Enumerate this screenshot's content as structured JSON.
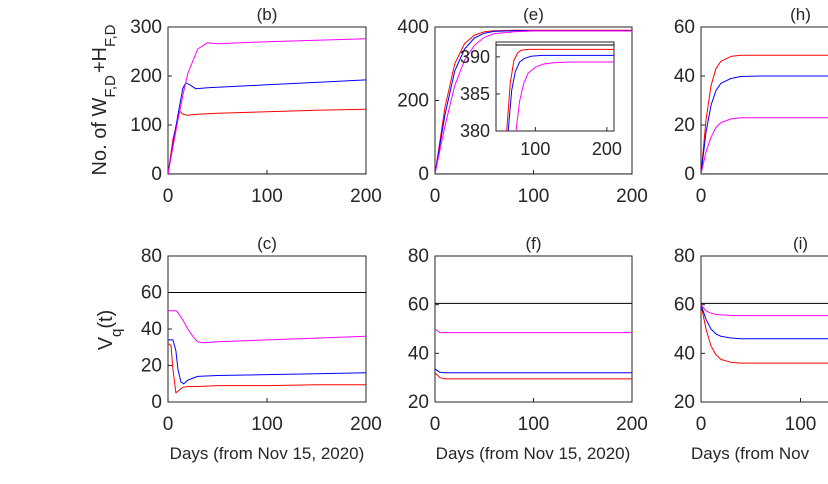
{
  "figure": {
    "ylabel_top": {
      "base": "No. of W",
      "sub1": "F,D",
      "mid": "+H",
      "sub2": "F,D"
    },
    "ylabel_bottom": {
      "base": "V",
      "sub": "q",
      "tail": "(t)"
    },
    "xlabel": "Days (from Nov 15, 2020)",
    "xlabel_cropped": "Days (from Nov"
  },
  "colors": {
    "black": "#000000",
    "blue": "#0000ff",
    "red": "#ff0000",
    "magenta": "#ff00ff",
    "axis": "#262626"
  },
  "chart_data": [
    {
      "panel": "(b)",
      "type": "line",
      "title": "(b)",
      "xlim": [
        0,
        200
      ],
      "ylim": [
        0,
        300
      ],
      "xticks": [
        0,
        100,
        200
      ],
      "yticks": [
        0,
        100,
        200,
        300
      ],
      "series": [
        {
          "color": "black",
          "x": [
            0,
            200
          ],
          "y": [
            0,
            0
          ]
        },
        {
          "color": "red",
          "x": [
            0,
            5,
            10,
            12,
            15,
            20,
            30,
            50,
            100,
            150,
            200
          ],
          "y": [
            0,
            70,
            115,
            128,
            122,
            120,
            122,
            124,
            127,
            130,
            132
          ]
        },
        {
          "color": "blue",
          "x": [
            0,
            5,
            10,
            15,
            18,
            22,
            28,
            40,
            60,
            100,
            150,
            200
          ],
          "y": [
            0,
            60,
            120,
            175,
            186,
            182,
            174,
            176,
            178,
            182,
            187,
            192
          ]
        },
        {
          "color": "magenta",
          "x": [
            0,
            5,
            10,
            15,
            20,
            30,
            40,
            50,
            100,
            150,
            200
          ],
          "y": [
            0,
            55,
            110,
            160,
            205,
            255,
            268,
            266,
            270,
            273,
            276
          ]
        }
      ]
    },
    {
      "panel": "(e)",
      "type": "line",
      "title": "(e)",
      "xlim": [
        0,
        200
      ],
      "ylim": [
        0,
        400
      ],
      "xticks": [
        0,
        100,
        200
      ],
      "yticks": [
        0,
        200,
        400
      ],
      "series": [
        {
          "color": "black",
          "x": [
            0,
            200
          ],
          "y": [
            0,
            0
          ]
        },
        {
          "color": "red",
          "x": [
            0,
            10,
            20,
            30,
            40,
            50,
            60,
            80,
            100,
            150,
            200
          ],
          "y": [
            0,
            180,
            300,
            355,
            378,
            387,
            390,
            391,
            391,
            391,
            391
          ]
        },
        {
          "color": "blue",
          "x": [
            0,
            10,
            20,
            30,
            40,
            50,
            60,
            80,
            100,
            150,
            200
          ],
          "y": [
            0,
            160,
            280,
            340,
            370,
            383,
            388,
            390,
            390,
            390,
            390
          ]
        },
        {
          "color": "magenta",
          "x": [
            0,
            10,
            20,
            30,
            40,
            50,
            60,
            80,
            100,
            150,
            200
          ],
          "y": [
            0,
            130,
            240,
            310,
            350,
            372,
            382,
            387,
            389,
            389,
            389
          ]
        }
      ],
      "inset": {
        "xlim": [
          45,
          210
        ],
        "ylim": [
          380,
          392
        ],
        "xticks": [
          100,
          200
        ],
        "yticks": [
          380,
          385,
          390
        ],
        "series": [
          {
            "color": "black",
            "x": [
              45,
              210
            ],
            "y": [
              391.6,
              391.6
            ]
          },
          {
            "color": "red",
            "x": [
              60,
              65,
              70,
              75,
              80,
              90,
              100,
              120,
              150,
              210
            ],
            "y": [
              380,
              386.5,
              389.5,
              390.5,
              390.9,
              391.0,
              391.0,
              391.0,
              391.0,
              391.0
            ]
          },
          {
            "color": "blue",
            "x": [
              62,
              67,
              72,
              78,
              85,
              95,
              110,
              130,
              160,
              210
            ],
            "y": [
              380,
              385.5,
              388.0,
              389.3,
              389.8,
              390.1,
              390.2,
              390.2,
              390.2,
              390.2
            ]
          },
          {
            "color": "magenta",
            "x": [
              73,
              78,
              84,
              90,
              100,
              110,
              125,
              150,
              180,
              210
            ],
            "y": [
              380,
              384.0,
              386.5,
              387.8,
              388.6,
              389.0,
              389.2,
              389.3,
              389.3,
              389.3
            ]
          }
        ]
      }
    },
    {
      "panel": "(h)",
      "type": "line",
      "title": "(h)",
      "xlim": [
        0,
        200
      ],
      "ylim": [
        0,
        60
      ],
      "xticks": [
        0
      ],
      "yticks": [
        0,
        20,
        40,
        60
      ],
      "series": [
        {
          "color": "black",
          "x": [
            0,
            200
          ],
          "y": [
            0,
            0
          ]
        },
        {
          "color": "red",
          "x": [
            0,
            5,
            10,
            15,
            20,
            30,
            40,
            60,
            80,
            130
          ],
          "y": [
            0,
            22,
            36,
            43,
            46,
            48,
            48.5,
            48.5,
            48.5,
            48.5
          ]
        },
        {
          "color": "blue",
          "x": [
            0,
            5,
            10,
            15,
            20,
            30,
            40,
            60,
            80,
            130
          ],
          "y": [
            0,
            17,
            28,
            34,
            37,
            39,
            39.8,
            40,
            40,
            40
          ]
        },
        {
          "color": "magenta",
          "x": [
            0,
            5,
            10,
            15,
            20,
            30,
            40,
            60,
            80,
            130
          ],
          "y": [
            0,
            9,
            15,
            19,
            21,
            22.5,
            23,
            23,
            23,
            23
          ]
        }
      ]
    },
    {
      "panel": "(c)",
      "type": "line",
      "title": "(c)",
      "xlim": [
        0,
        200
      ],
      "ylim": [
        0,
        80
      ],
      "xticks": [
        0,
        100,
        200
      ],
      "yticks": [
        0,
        20,
        40,
        60,
        80
      ],
      "series": [
        {
          "color": "black",
          "x": [
            0,
            200
          ],
          "y": [
            60,
            60
          ]
        },
        {
          "color": "red",
          "x": [
            0,
            3,
            5,
            8,
            10,
            15,
            20,
            30,
            50,
            100,
            150,
            200
          ],
          "y": [
            32,
            31,
            18,
            5,
            6,
            8,
            8.5,
            8.5,
            9,
            9,
            9.5,
            9.5
          ]
        },
        {
          "color": "blue",
          "x": [
            0,
            5,
            8,
            10,
            13,
            16,
            20,
            30,
            50,
            100,
            150,
            200
          ],
          "y": [
            34,
            34,
            28,
            18,
            11,
            10,
            12,
            14,
            14.5,
            15,
            15.5,
            16
          ]
        },
        {
          "color": "magenta",
          "x": [
            0,
            8,
            10,
            15,
            20,
            25,
            30,
            35,
            50,
            100,
            150,
            200
          ],
          "y": [
            50,
            50,
            49,
            45,
            40,
            36,
            33,
            32.5,
            33,
            34,
            35,
            36
          ]
        }
      ]
    },
    {
      "panel": "(f)",
      "type": "line",
      "title": "(f)",
      "xlim": [
        0,
        200
      ],
      "ylim": [
        20,
        80
      ],
      "xticks": [
        0,
        100,
        200
      ],
      "yticks": [
        20,
        40,
        60,
        80
      ],
      "series": [
        {
          "color": "black",
          "x": [
            0,
            200
          ],
          "y": [
            60.5,
            60.5
          ]
        },
        {
          "color": "red",
          "x": [
            0,
            5,
            10,
            200
          ],
          "y": [
            32,
            30,
            29.5,
            29.5
          ]
        },
        {
          "color": "blue",
          "x": [
            0,
            5,
            10,
            200
          ],
          "y": [
            33.5,
            32.2,
            32,
            32
          ]
        },
        {
          "color": "magenta",
          "x": [
            0,
            5,
            10,
            200
          ],
          "y": [
            50,
            48.5,
            48.5,
            48.5
          ]
        }
      ]
    },
    {
      "panel": "(i)",
      "type": "line",
      "title": "(i)",
      "xlim": [
        0,
        200
      ],
      "ylim": [
        20,
        80
      ],
      "xticks": [
        0,
        100
      ],
      "yticks": [
        20,
        40,
        60,
        80
      ],
      "series": [
        {
          "color": "black",
          "x": [
            0,
            200
          ],
          "y": [
            60.5,
            60.5
          ]
        },
        {
          "color": "red",
          "x": [
            0,
            5,
            10,
            15,
            20,
            30,
            40,
            60,
            130
          ],
          "y": [
            60,
            50,
            43,
            39.5,
            37.5,
            36.3,
            36,
            36,
            36
          ]
        },
        {
          "color": "blue",
          "x": [
            0,
            5,
            10,
            15,
            20,
            30,
            40,
            60,
            130
          ],
          "y": [
            60,
            54,
            50,
            48,
            47,
            46.3,
            46,
            46,
            46
          ]
        },
        {
          "color": "magenta",
          "x": [
            0,
            5,
            10,
            15,
            20,
            30,
            40,
            60,
            130
          ],
          "y": [
            60,
            57.5,
            56.5,
            56,
            55.8,
            55.6,
            55.5,
            55.5,
            55.5
          ]
        }
      ]
    }
  ]
}
